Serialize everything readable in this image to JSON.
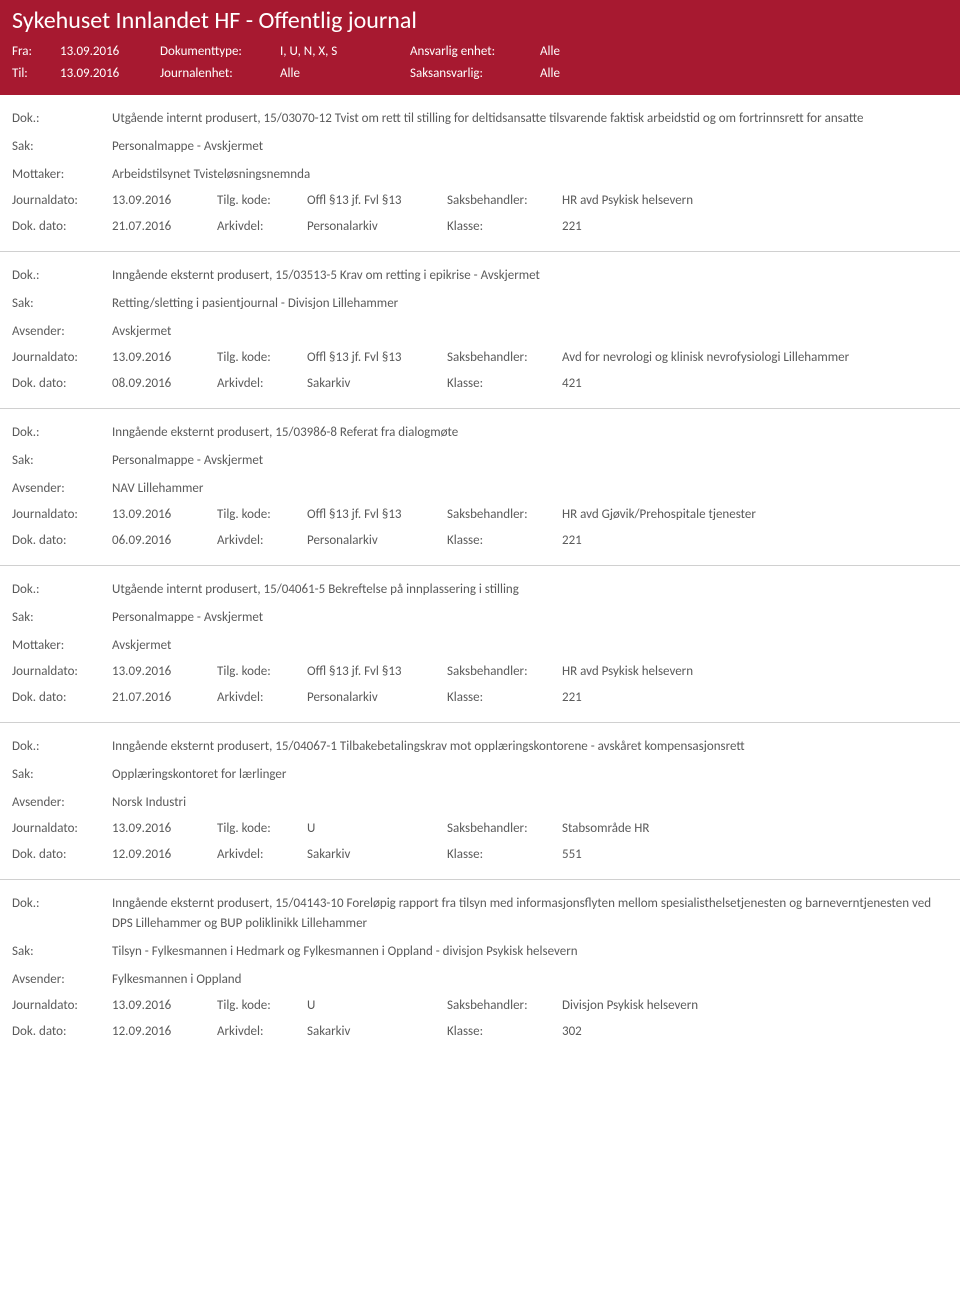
{
  "colors": {
    "header_bg": "#a71930",
    "header_text": "#ffffff",
    "body_text": "#5a5a5a",
    "border": "#d0d0d0",
    "page_bg": "#ffffff"
  },
  "header": {
    "title": "Sykehuset Innlandet HF - Offentlig journal",
    "fra_label": "Fra:",
    "fra_value": "13.09.2016",
    "til_label": "Til:",
    "til_value": "13.09.2016",
    "doktype_label": "Dokumenttype:",
    "doktype_value": "I, U, N, X, S",
    "journalenhet_label": "Journalenhet:",
    "journalenhet_value": "Alle",
    "ansvarlig_label": "Ansvarlig enhet:",
    "ansvarlig_value": "Alle",
    "saksansvarlig_label": "Saksansvarlig:",
    "saksansvarlig_value": "Alle"
  },
  "labels": {
    "dok": "Dok.:",
    "sak": "Sak:",
    "mottaker": "Mottaker:",
    "avsender": "Avsender:",
    "journaldato": "Journaldato:",
    "dokdato": "Dok. dato:",
    "tilgkode": "Tilg. kode:",
    "arkivdel": "Arkivdel:",
    "saksbehandler": "Saksbehandler:",
    "klasse": "Klasse:"
  },
  "entries": [
    {
      "dok": "Utgående internt produsert, 15/03070-12 Tvist om rett til stilling for deltidsansatte tilsvarende faktisk arbeidstid og om fortrinnsrett for ansatte",
      "sak": "Personalmappe - Avskjermet",
      "party_label": "Mottaker:",
      "party": "Arbeidstilsynet Tvisteløsningsnemnda",
      "journaldato": "13.09.2016",
      "tilgkode": "Offl §13 jf. Fvl §13",
      "saksbehandler": "HR avd Psykisk helsevern",
      "dokdato": "21.07.2016",
      "arkivdel": "Personalarkiv",
      "klasse": "221"
    },
    {
      "dok": "Inngående eksternt produsert, 15/03513-5 Krav om retting i epikrise - Avskjermet",
      "sak": "Retting/sletting i pasientjournal - Divisjon Lillehammer",
      "party_label": "Avsender:",
      "party": "Avskjermet",
      "journaldato": "13.09.2016",
      "tilgkode": "Offl §13 jf. Fvl §13",
      "saksbehandler": "Avd for nevrologi og klinisk nevrofysiologi Lillehammer",
      "dokdato": "08.09.2016",
      "arkivdel": "Sakarkiv",
      "klasse": "421"
    },
    {
      "dok": "Inngående eksternt produsert, 15/03986-8 Referat fra dialogmøte",
      "sak": "Personalmappe - Avskjermet",
      "party_label": "Avsender:",
      "party": "NAV Lillehammer",
      "journaldato": "13.09.2016",
      "tilgkode": "Offl §13 jf. Fvl §13",
      "saksbehandler": "HR avd Gjøvik/Prehospitale tjenester",
      "dokdato": "06.09.2016",
      "arkivdel": "Personalarkiv",
      "klasse": "221"
    },
    {
      "dok": "Utgående internt produsert, 15/04061-5 Bekreftelse på innplassering i stilling",
      "sak": "Personalmappe - Avskjermet",
      "party_label": "Mottaker:",
      "party": "Avskjermet",
      "journaldato": "13.09.2016",
      "tilgkode": "Offl §13 jf. Fvl §13",
      "saksbehandler": "HR avd Psykisk helsevern",
      "dokdato": "21.07.2016",
      "arkivdel": "Personalarkiv",
      "klasse": "221"
    },
    {
      "dok": "Inngående eksternt produsert, 15/04067-1 Tilbakebetalingskrav mot opplæringskontorene - avskåret kompensasjonsrett",
      "sak": "Opplæringskontoret for lærlinger",
      "party_label": "Avsender:",
      "party": "Norsk Industri",
      "journaldato": "13.09.2016",
      "tilgkode": "U",
      "saksbehandler": "Stabsområde HR",
      "dokdato": "12.09.2016",
      "arkivdel": "Sakarkiv",
      "klasse": "551"
    },
    {
      "dok": "Inngående eksternt produsert, 15/04143-10 Foreløpig rapport fra tilsyn med informasjonsflyten mellom spesialisthelsetjenesten og barneverntjenesten ved DPS Lillehammer og BUP poliklinikk Lillehammer",
      "sak": "Tilsyn - Fylkesmannen i Hedmark og Fylkesmannen i Oppland - divisjon Psykisk helsevern",
      "party_label": "Avsender:",
      "party": "Fylkesmannen i Oppland",
      "journaldato": "13.09.2016",
      "tilgkode": "U",
      "saksbehandler": "Divisjon Psykisk helsevern",
      "dokdato": "12.09.2016",
      "arkivdel": "Sakarkiv",
      "klasse": "302"
    }
  ]
}
